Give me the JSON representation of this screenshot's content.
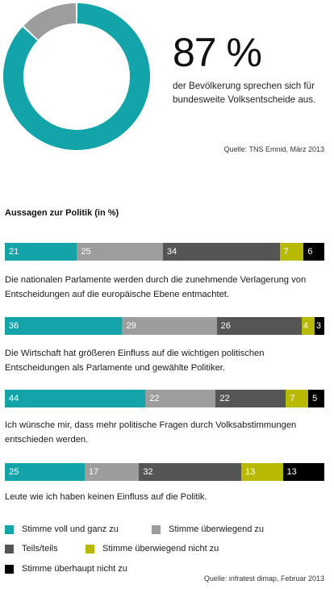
{
  "headline": {
    "value": "87 %",
    "description": "der Bevölkerung sprechen sich für bundesweite Volksentscheide aus.",
    "source": "Quelle: TNS Emnid, März 2013"
  },
  "section_title": "Aussagen zur Politik (in %)",
  "colors": {
    "stimme_voll": "#12a4a9",
    "stimme_ueberwiegend": "#9d9d9d",
    "teils": "#555555",
    "ueberwiegend_nicht": "#b7ba00",
    "ueberhaupt_nicht": "#000000"
  },
  "legend": [
    {
      "label": "Stimme voll und ganz zu",
      "color": "#12a4a9"
    },
    {
      "label": "Stimme überwiegend zu",
      "color": "#9d9d9d"
    },
    {
      "label": "Teils/teils",
      "color": "#555555"
    },
    {
      "label": "Stimme überwiegend nicht zu",
      "color": "#b7ba00"
    },
    {
      "label": "Stimme überhaupt nicht zu",
      "color": "#000000"
    }
  ],
  "source2": "Quelle: infratest dimap, Februar 2013",
  "chart_data": [
    {
      "type": "pie",
      "labels": [
        "",
        ""
      ],
      "values": [
        87,
        13
      ],
      "colors": [
        "#12a4a9",
        "#9d9d9d"
      ]
    },
    {
      "type": "bar",
      "stacked": true,
      "orientation": "horizontal",
      "title": "Aussagen zur Politik (in %)",
      "categories": [
        "Die nationalen Parlamente werden durch die zunehmende Verlagerung von Entscheidungen auf die europäische Ebene entmachtet.",
        "Die Wirtschaft hat größeren Einfluss auf die wichtigen politischen Entscheidungen als Parlamente und gewählte Politiker.",
        "Ich wünsche mir, dass mehr politische Fragen durch Volksabstimmungen entschieden werden.",
        "Leute wie ich haben keinen Einfluss auf die Politik."
      ],
      "series": [
        {
          "name": "Stimme voll und ganz zu",
          "values": [
            21,
            36,
            44,
            25
          ]
        },
        {
          "name": "Stimme überwiegend zu",
          "values": [
            25,
            29,
            22,
            17
          ]
        },
        {
          "name": "Teils/teils",
          "values": [
            34,
            26,
            22,
            32
          ]
        },
        {
          "name": "Stimme überwiegend nicht zu",
          "values": [
            7,
            4,
            7,
            13
          ]
        },
        {
          "name": "Stimme überhaupt nicht zu",
          "values": [
            6,
            3,
            5,
            13
          ]
        }
      ]
    }
  ]
}
